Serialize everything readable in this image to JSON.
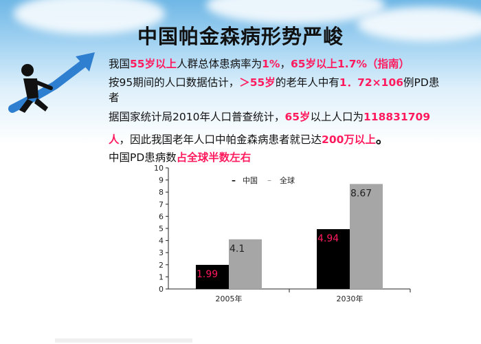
{
  "title": "中国帕金森病形势严峻",
  "bullets": [
    {
      "mark": "",
      "parts": [
        {
          "t": "我国",
          "red": false
        },
        {
          "t": "55岁以上",
          "red": true
        },
        {
          "t": "人群总体患病率为",
          "red": false
        },
        {
          "t": "1%",
          "red": true
        },
        {
          "t": "，",
          "red": false
        },
        {
          "t": "65岁以上1.7%（指南）",
          "red": true
        }
      ]
    },
    {
      "mark": "",
      "parts": [
        {
          "t": "按95期间的人口数据估计，",
          "red": false
        },
        {
          "t": "＞55岁",
          "red": true
        },
        {
          "t": "的老年人中有",
          "red": false
        },
        {
          "t": "1．72×106",
          "red": true
        },
        {
          "t": "例PD患",
          "red": false
        }
      ],
      "cont": "者"
    },
    {
      "mark": "",
      "parts": [
        {
          "t": "据国家统计局2010年人口普查统计，",
          "red": false
        },
        {
          "t": "65岁",
          "red": true
        },
        {
          "t": "以上人口为",
          "red": false
        },
        {
          "t": "118831709",
          "red": true
        }
      ],
      "cont2": [
        {
          "t": "人",
          "red": true
        },
        {
          "t": "，因此我国老年人口中帕金森病患者就已达",
          "red": false
        },
        {
          "t": "200万以上",
          "red": true
        },
        {
          "t": "。",
          "red": false
        }
      ]
    },
    {
      "mark": "",
      "parts": [
        {
          "t": "中国PD患病数",
          "red": false
        },
        {
          "t": "占全球半数左右",
          "red": true
        }
      ]
    }
  ],
  "chart_data": {
    "type": "bar",
    "categories": [
      "2005年",
      "2030年"
    ],
    "series": [
      {
        "name": "中国",
        "values": [
          1.99,
          4.94
        ],
        "color": "#000000",
        "label_color": "#ff1a5e"
      },
      {
        "name": "全球",
        "values": [
          4.1,
          8.67
        ],
        "color": "#a6a6a6",
        "label_color": "#222222"
      }
    ],
    "ylim": [
      0,
      10
    ],
    "yticks": [
      "0",
      "1",
      "2",
      "3",
      "4",
      "5",
      "6",
      "7",
      "8",
      "9",
      "10"
    ],
    "legend_position": "top",
    "legend_sep": "–"
  }
}
